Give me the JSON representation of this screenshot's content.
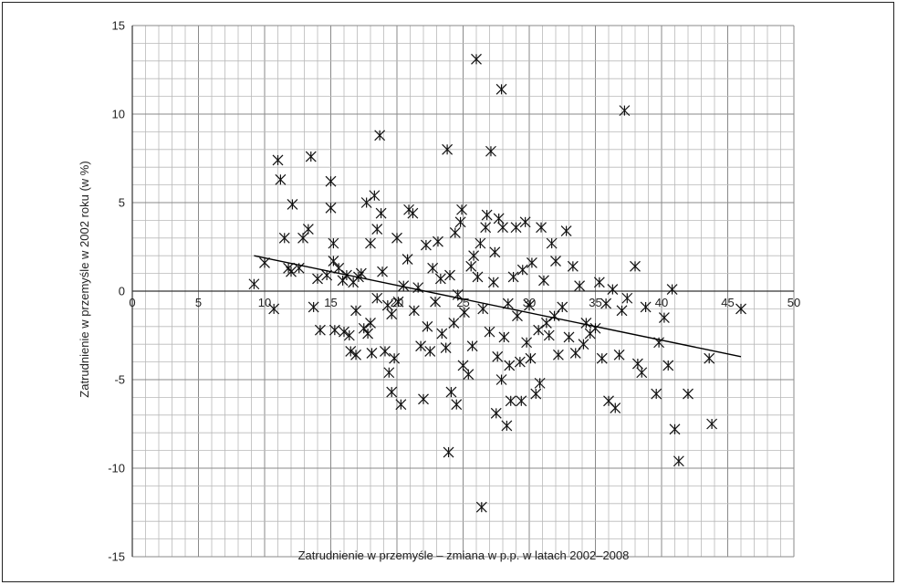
{
  "chart_data": {
    "type": "scatter",
    "title": "",
    "xlabel": "Zatrudnienie w przemyśle – zmiana w p.p. w latach 2002–2008",
    "ylabel": "Zatrudnienie w przemyśle w 2002 roku (w %)",
    "xlim": [
      0,
      50
    ],
    "ylim": [
      -15,
      15
    ],
    "x_ticks": [
      "0",
      "5",
      "10",
      "15",
      "20",
      "25",
      "30",
      "35",
      "40",
      "45",
      "50"
    ],
    "y_ticks": [
      "15",
      "10",
      "5",
      "0",
      "-5",
      "-10",
      "-15"
    ],
    "grid": true,
    "minor_grid": true,
    "marker": "asterisk",
    "trendline": {
      "x": [
        9.2,
        46.0
      ],
      "y": [
        2.0,
        -3.7
      ]
    },
    "points": [
      {
        "x": 9.2,
        "y": 0.4
      },
      {
        "x": 10.0,
        "y": 1.6
      },
      {
        "x": 10.7,
        "y": -1.0
      },
      {
        "x": 11.0,
        "y": 7.4
      },
      {
        "x": 11.2,
        "y": 6.3
      },
      {
        "x": 11.5,
        "y": 3.0
      },
      {
        "x": 11.8,
        "y": 1.3
      },
      {
        "x": 12.0,
        "y": 1.1
      },
      {
        "x": 12.1,
        "y": 4.9
      },
      {
        "x": 12.6,
        "y": 1.3
      },
      {
        "x": 12.9,
        "y": 3.0
      },
      {
        "x": 13.3,
        "y": 3.5
      },
      {
        "x": 13.5,
        "y": 7.6
      },
      {
        "x": 13.7,
        "y": -0.9
      },
      {
        "x": 14.0,
        "y": 0.7
      },
      {
        "x": 14.2,
        "y": -2.2
      },
      {
        "x": 14.7,
        "y": 0.9
      },
      {
        "x": 15.0,
        "y": 6.2
      },
      {
        "x": 15.0,
        "y": 4.7
      },
      {
        "x": 15.2,
        "y": 2.7
      },
      {
        "x": 15.2,
        "y": 1.7
      },
      {
        "x": 15.3,
        "y": -2.2
      },
      {
        "x": 15.6,
        "y": 1.3
      },
      {
        "x": 15.9,
        "y": 0.6
      },
      {
        "x": 16.0,
        "y": -2.3
      },
      {
        "x": 16.2,
        "y": 0.9
      },
      {
        "x": 16.4,
        "y": -2.5
      },
      {
        "x": 16.5,
        "y": -3.4
      },
      {
        "x": 16.7,
        "y": 0.5
      },
      {
        "x": 16.9,
        "y": -1.1
      },
      {
        "x": 16.9,
        "y": -3.6
      },
      {
        "x": 17.1,
        "y": 0.8
      },
      {
        "x": 17.3,
        "y": 1.0
      },
      {
        "x": 17.5,
        "y": -2.1
      },
      {
        "x": 17.7,
        "y": 5.0
      },
      {
        "x": 17.8,
        "y": -2.4
      },
      {
        "x": 18.0,
        "y": 2.7
      },
      {
        "x": 18.0,
        "y": -1.8
      },
      {
        "x": 18.1,
        "y": -3.5
      },
      {
        "x": 18.3,
        "y": 5.4
      },
      {
        "x": 18.5,
        "y": 3.5
      },
      {
        "x": 18.5,
        "y": -0.4
      },
      {
        "x": 18.7,
        "y": 8.8
      },
      {
        "x": 18.8,
        "y": 4.4
      },
      {
        "x": 18.9,
        "y": 1.1
      },
      {
        "x": 19.1,
        "y": -3.4
      },
      {
        "x": 19.3,
        "y": -0.8
      },
      {
        "x": 19.4,
        "y": -4.6
      },
      {
        "x": 19.6,
        "y": -5.7
      },
      {
        "x": 19.6,
        "y": -1.3
      },
      {
        "x": 19.8,
        "y": -3.8
      },
      {
        "x": 20.0,
        "y": 3.0
      },
      {
        "x": 20.1,
        "y": -0.6
      },
      {
        "x": 20.3,
        "y": -6.4
      },
      {
        "x": 20.5,
        "y": 0.3
      },
      {
        "x": 20.8,
        "y": 1.8
      },
      {
        "x": 20.9,
        "y": 4.6
      },
      {
        "x": 21.2,
        "y": 4.4
      },
      {
        "x": 21.3,
        "y": -1.1
      },
      {
        "x": 21.6,
        "y": 0.2
      },
      {
        "x": 21.8,
        "y": -3.1
      },
      {
        "x": 22.0,
        "y": -6.1
      },
      {
        "x": 22.2,
        "y": 2.6
      },
      {
        "x": 22.3,
        "y": -2.0
      },
      {
        "x": 22.5,
        "y": -3.4
      },
      {
        "x": 22.7,
        "y": 1.3
      },
      {
        "x": 22.9,
        "y": -0.6
      },
      {
        "x": 23.1,
        "y": 2.8
      },
      {
        "x": 23.3,
        "y": 0.7
      },
      {
        "x": 23.4,
        "y": -2.4
      },
      {
        "x": 23.7,
        "y": -3.2
      },
      {
        "x": 23.8,
        "y": 8.0
      },
      {
        "x": 23.9,
        "y": -9.1
      },
      {
        "x": 24.0,
        "y": 0.9
      },
      {
        "x": 24.1,
        "y": -5.7
      },
      {
        "x": 24.3,
        "y": -1.8
      },
      {
        "x": 24.4,
        "y": 3.3
      },
      {
        "x": 24.5,
        "y": -6.4
      },
      {
        "x": 24.6,
        "y": -0.2
      },
      {
        "x": 24.8,
        "y": 3.9
      },
      {
        "x": 24.9,
        "y": 4.6
      },
      {
        "x": 25.0,
        "y": -4.2
      },
      {
        "x": 25.1,
        "y": -1.2
      },
      {
        "x": 25.4,
        "y": -4.7
      },
      {
        "x": 25.6,
        "y": 1.4
      },
      {
        "x": 25.7,
        "y": -3.1
      },
      {
        "x": 25.8,
        "y": 2.0
      },
      {
        "x": 26.0,
        "y": 13.1
      },
      {
        "x": 26.1,
        "y": 0.8
      },
      {
        "x": 26.3,
        "y": 2.7
      },
      {
        "x": 26.4,
        "y": -12.2
      },
      {
        "x": 26.5,
        "y": -1.0
      },
      {
        "x": 26.7,
        "y": 3.6
      },
      {
        "x": 26.8,
        "y": 4.3
      },
      {
        "x": 27.0,
        "y": -2.3
      },
      {
        "x": 27.1,
        "y": 7.9
      },
      {
        "x": 27.3,
        "y": 0.5
      },
      {
        "x": 27.4,
        "y": 2.2
      },
      {
        "x": 27.5,
        "y": -6.9
      },
      {
        "x": 27.6,
        "y": -3.7
      },
      {
        "x": 27.7,
        "y": 4.1
      },
      {
        "x": 27.9,
        "y": 11.4
      },
      {
        "x": 27.9,
        "y": -5.0
      },
      {
        "x": 28.0,
        "y": 3.6
      },
      {
        "x": 28.1,
        "y": -2.6
      },
      {
        "x": 28.3,
        "y": -7.6
      },
      {
        "x": 28.4,
        "y": -0.7
      },
      {
        "x": 28.5,
        "y": -4.2
      },
      {
        "x": 28.6,
        "y": -6.2
      },
      {
        "x": 28.8,
        "y": 0.8
      },
      {
        "x": 29.0,
        "y": 3.6
      },
      {
        "x": 29.1,
        "y": -1.4
      },
      {
        "x": 29.3,
        "y": -4.0
      },
      {
        "x": 29.4,
        "y": -6.2
      },
      {
        "x": 29.5,
        "y": 1.2
      },
      {
        "x": 29.7,
        "y": 3.9
      },
      {
        "x": 29.8,
        "y": -2.9
      },
      {
        "x": 30.0,
        "y": -0.8
      },
      {
        "x": 30.1,
        "y": -3.8
      },
      {
        "x": 30.2,
        "y": 1.6
      },
      {
        "x": 30.5,
        "y": -5.8
      },
      {
        "x": 30.7,
        "y": -2.2
      },
      {
        "x": 30.8,
        "y": -5.2
      },
      {
        "x": 30.9,
        "y": 3.6
      },
      {
        "x": 31.1,
        "y": 0.6
      },
      {
        "x": 31.3,
        "y": -1.8
      },
      {
        "x": 31.5,
        "y": -2.5
      },
      {
        "x": 31.7,
        "y": 2.7
      },
      {
        "x": 31.9,
        "y": -1.4
      },
      {
        "x": 32.0,
        "y": 1.7
      },
      {
        "x": 32.2,
        "y": -3.6
      },
      {
        "x": 32.5,
        "y": -0.9
      },
      {
        "x": 32.8,
        "y": 3.4
      },
      {
        "x": 33.0,
        "y": -2.6
      },
      {
        "x": 33.3,
        "y": 1.4
      },
      {
        "x": 33.5,
        "y": -3.5
      },
      {
        "x": 33.8,
        "y": 0.3
      },
      {
        "x": 34.1,
        "y": -3.0
      },
      {
        "x": 34.3,
        "y": -1.8
      },
      {
        "x": 34.6,
        "y": -2.4
      },
      {
        "x": 35.0,
        "y": -2.1
      },
      {
        "x": 35.3,
        "y": 0.5
      },
      {
        "x": 35.5,
        "y": -3.8
      },
      {
        "x": 35.8,
        "y": -0.7
      },
      {
        "x": 36.0,
        "y": -6.2
      },
      {
        "x": 36.3,
        "y": 0.1
      },
      {
        "x": 36.5,
        "y": -6.6
      },
      {
        "x": 36.8,
        "y": -3.6
      },
      {
        "x": 37.0,
        "y": -1.1
      },
      {
        "x": 37.2,
        "y": 10.2
      },
      {
        "x": 37.4,
        "y": -0.4
      },
      {
        "x": 38.0,
        "y": 1.4
      },
      {
        "x": 38.2,
        "y": -4.1
      },
      {
        "x": 38.5,
        "y": -4.6
      },
      {
        "x": 38.8,
        "y": -0.9
      },
      {
        "x": 39.6,
        "y": -5.8
      },
      {
        "x": 39.8,
        "y": -2.9
      },
      {
        "x": 40.2,
        "y": -1.5
      },
      {
        "x": 40.5,
        "y": -4.2
      },
      {
        "x": 40.8,
        "y": 0.1
      },
      {
        "x": 41.0,
        "y": -7.8
      },
      {
        "x": 41.3,
        "y": -9.6
      },
      {
        "x": 42.0,
        "y": -5.8
      },
      {
        "x": 43.6,
        "y": -3.8
      },
      {
        "x": 43.8,
        "y": -7.5
      },
      {
        "x": 46.0,
        "y": -1.0
      }
    ]
  }
}
